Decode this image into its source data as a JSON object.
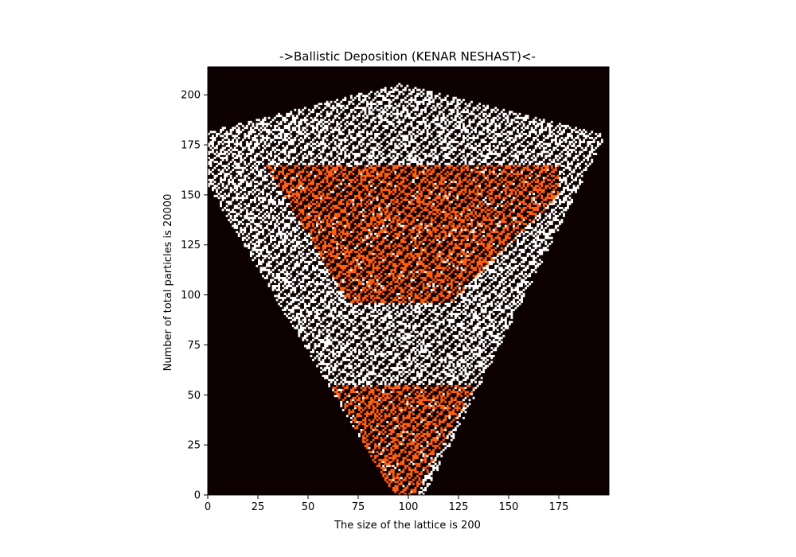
{
  "chart_data": {
    "type": "heatmap",
    "title": "->Ballistic Deposition (KENAR NESHAST)<-",
    "xlabel": "The size of the lattice is 200",
    "ylabel": "Number of total particles is 20000",
    "xlim": [
      0,
      200
    ],
    "ylim": [
      0,
      214
    ],
    "xticks": [
      0,
      25,
      50,
      75,
      100,
      125,
      150,
      175
    ],
    "yticks": [
      0,
      25,
      50,
      75,
      100,
      125,
      150,
      175,
      200
    ],
    "grid": false,
    "legend": "none",
    "colors": {
      "background": "#0d0000",
      "layer_white": "#ffffff",
      "layer_orange": "#ff5f0f"
    },
    "deposit_layers": [
      {
        "color": "white",
        "height_range": [
          0,
          214
        ]
      },
      {
        "color": "orange",
        "height_range": [
          0,
          60
        ]
      },
      {
        "color": "orange",
        "height_range": [
          95,
          165
        ]
      }
    ]
  }
}
